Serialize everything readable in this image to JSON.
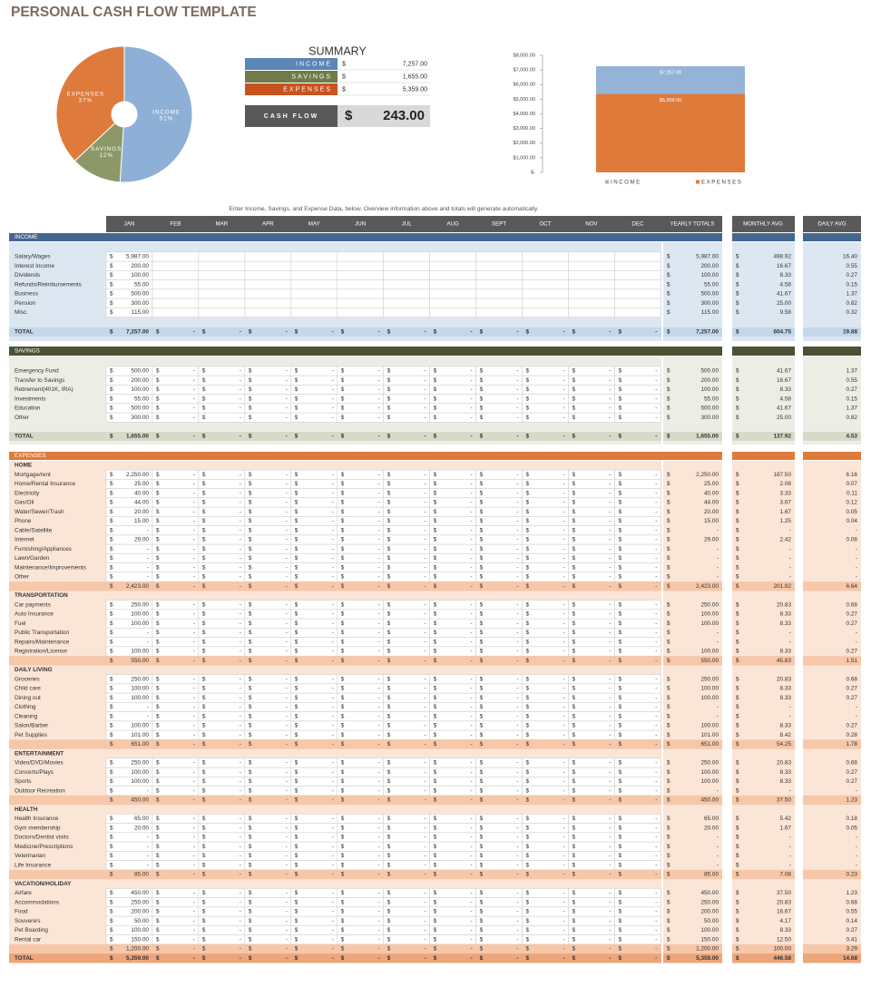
{
  "header": {
    "title": "PERSONAL CASH FLOW TEMPLATE"
  },
  "chart_data": [
    {
      "type": "pie",
      "categories": [
        "INCOME",
        "SAVINGS",
        "EXPENSES"
      ],
      "values": [
        51,
        12,
        37
      ],
      "value_labels": [
        "51%",
        "12%",
        "37%"
      ],
      "colors": [
        "#8fb0d6",
        "#8c9868",
        "#de7a3c"
      ]
    },
    {
      "type": "bar",
      "categories": [
        null
      ],
      "series": [
        {
          "name": "INCOME",
          "color": "#95b3d7",
          "values": [
            7257
          ],
          "value_labels": [
            "$7,257.00"
          ]
        },
        {
          "name": "EXPENSES",
          "color": "#df7a3a",
          "values": [
            5359
          ],
          "value_labels": [
            "$5,359.00"
          ]
        }
      ],
      "ylim": [
        0,
        8000
      ],
      "yticks": [
        {
          "value": 0,
          "label": "$-"
        },
        {
          "value": 1000,
          "label": "$1,000.00"
        },
        {
          "value": 2000,
          "label": "$2,000.00"
        },
        {
          "value": 3000,
          "label": "$3,000.00"
        },
        {
          "value": 4000,
          "label": "$4,000.00"
        },
        {
          "value": 5000,
          "label": "$5,000.00"
        },
        {
          "value": 6000,
          "label": "$6,000.00"
        },
        {
          "value": 7000,
          "label": "$7,000.00"
        },
        {
          "value": 8000,
          "label": "$8,000.00"
        }
      ],
      "legend": "bottom"
    }
  ],
  "summary": {
    "title": "SUMMARY",
    "currency": "$",
    "rows": [
      {
        "label": "INCOME",
        "value": "7,257.00"
      },
      {
        "label": "SAVINGS",
        "value": "1,655.00"
      },
      {
        "label": "EXPENSES",
        "value": "5,359.00"
      }
    ],
    "cash_flow": {
      "label": "CASH FLOW",
      "value": "243.00"
    }
  },
  "instructions": "Enter Income, Savings, and Expense Data, below.  Overview information above and totals will generate automatically.",
  "table": {
    "columns": [
      "JAN",
      "FEB",
      "MAR",
      "APR",
      "MAY",
      "JUN",
      "JUL",
      "AUG",
      "SEPT",
      "OCT",
      "NOV",
      "DEC",
      "YEARLY TOTALS",
      "MONTHLY AVG",
      "DAILY AVG"
    ],
    "currency": "$",
    "dash": "-",
    "sections": [
      {
        "title": "INCOME",
        "rows": [
          [
            "Salary/Wages",
            "5,987.00",
            "5,987.00",
            "498.92",
            "16.40"
          ],
          [
            "Interest Income",
            "200.00",
            "200.00",
            "16.67",
            "0.55"
          ],
          [
            "Dividends",
            "100.00",
            "100.00",
            "8.33",
            "0.27"
          ],
          [
            "Refunds/Reimbursements",
            "55.00",
            "55.00",
            "4.58",
            "0.15"
          ],
          [
            "Business",
            "500.00",
            "500.00",
            "41.67",
            "1.37"
          ],
          [
            "Pension",
            "300.00",
            "300.00",
            "25.00",
            "0.82"
          ],
          [
            "Misc.",
            "115.00",
            "115.00",
            "9.58",
            "0.32"
          ]
        ],
        "total": [
          "TOTAL",
          "7,257.00",
          "7,257.00",
          "604.75",
          "19.88"
        ]
      },
      {
        "title": "SAVINGS",
        "rows": [
          [
            "Emergency Fund",
            "500.00",
            "500.00",
            "41.67",
            "1.37"
          ],
          [
            "Transfer to Savings",
            "200.00",
            "200.00",
            "16.67",
            "0.55"
          ],
          [
            "Retirement(401K, IRA)",
            "100.00",
            "100.00",
            "8.33",
            "0.27"
          ],
          [
            "Investments",
            "55.00",
            "55.00",
            "4.58",
            "0.15"
          ],
          [
            "Education",
            "500.00",
            "500.00",
            "41.67",
            "1.37"
          ],
          [
            "Other",
            "300.00",
            "300.00",
            "25.00",
            "0.82"
          ]
        ],
        "total": [
          "TOTAL",
          "1,655.00",
          "1,655.00",
          "137.92",
          "4.53"
        ]
      },
      {
        "title": "EXPENSES",
        "groups": [
          {
            "title": "HOME",
            "rows": [
              [
                "Mortgage/rent",
                "2,250.00",
                "2,250.00",
                "187.50",
                "6.16"
              ],
              [
                "Home/Rental Insurance",
                "25.00",
                "25.00",
                "2.08",
                "0.07"
              ],
              [
                "Electricity",
                "40.00",
                "40.00",
                "3.33",
                "0.11"
              ],
              [
                "Gas/Oil",
                "44.00",
                "44.00",
                "3.67",
                "0.12"
              ],
              [
                "Water/Sewer/Trash",
                "20.00",
                "20.00",
                "1.67",
                "0.05"
              ],
              [
                "Phone",
                "15.00",
                "15.00",
                "1.25",
                "0.04"
              ],
              [
                "Cable/Satellite",
                "-",
                "-",
                "-",
                "-"
              ],
              [
                "Internet",
                "29.00",
                "29.00",
                "2.42",
                "0.08"
              ],
              [
                "Furnishing/Appliances",
                "-",
                "-",
                "-",
                "-"
              ],
              [
                "Lawn/Garden",
                "-",
                "-",
                "-",
                "-"
              ],
              [
                "Maintenance/Improvements",
                "-",
                "-",
                "-",
                "-"
              ],
              [
                "Other",
                "-",
                "-",
                "-",
                "-"
              ]
            ],
            "subtotal": [
              "2,423.00",
              "2,423.00",
              "201.92",
              "6.64"
            ]
          },
          {
            "title": "TRANSPORTATION",
            "rows": [
              [
                "Car payments",
                "250.00",
                "250.00",
                "20.83",
                "0.68"
              ],
              [
                "Auto Insurance",
                "100.00",
                "100.00",
                "8.33",
                "0.27"
              ],
              [
                "Fuel",
                "100.00",
                "100.00",
                "8.33",
                "0.27"
              ],
              [
                "Public Transportation",
                "-",
                "-",
                "-",
                "-"
              ],
              [
                "Repairs/Maintenance",
                "-",
                "-",
                "-",
                "-"
              ],
              [
                "Registration/License",
                "100.00",
                "100.00",
                "8.33",
                "0.27"
              ]
            ],
            "subtotal": [
              "550.00",
              "550.00",
              "45.83",
              "1.51"
            ]
          },
          {
            "title": "DAILY LIVING",
            "rows": [
              [
                "Groceries",
                "250.00",
                "250.00",
                "20.83",
                "0.68"
              ],
              [
                "Child care",
                "100.00",
                "100.00",
                "8.33",
                "0.27"
              ],
              [
                "Dining out",
                "100.00",
                "100.00",
                "8.33",
                "0.27"
              ],
              [
                "Clothing",
                "-",
                "-",
                "-",
                "-"
              ],
              [
                "Cleaning",
                "-",
                "-",
                "-",
                "-"
              ],
              [
                "Salon/Barber",
                "100.00",
                "100.00",
                "8.33",
                "0.27"
              ],
              [
                "Pet Supplies",
                "101.00",
                "101.00",
                "8.42",
                "0.28"
              ]
            ],
            "subtotal": [
              "651.00",
              "651.00",
              "54.25",
              "1.78"
            ]
          },
          {
            "title": "ENTERTAINMENT",
            "rows": [
              [
                "Video/DVD/Movies",
                "250.00",
                "250.00",
                "20.83",
                "0.68"
              ],
              [
                "Concerts/Plays",
                "100.00",
                "100.00",
                "8.33",
                "0.27"
              ],
              [
                "Sports",
                "100.00",
                "100.00",
                "8.33",
                "0.27"
              ],
              [
                "Outdoor Recreation",
                "-",
                "-",
                "-",
                "-"
              ]
            ],
            "subtotal": [
              "450.00",
              "450.00",
              "37.50",
              "1.23"
            ]
          },
          {
            "title": "HEALTH",
            "rows": [
              [
                "Health Insurance",
                "65.00",
                "65.00",
                "5.42",
                "0.18"
              ],
              [
                "Gym membership",
                "20.00",
                "20.00",
                "1.67",
                "0.05"
              ],
              [
                "Doctors/Dentist visits",
                "-",
                "-",
                "-",
                "-"
              ],
              [
                "Medicine/Prescriptions",
                "-",
                "-",
                "-",
                "-"
              ],
              [
                "Veterinarian",
                "-",
                "-",
                "-",
                "-"
              ],
              [
                "Life Insurance",
                "-",
                "-",
                "-",
                "-"
              ]
            ],
            "subtotal": [
              "85.00",
              "85.00",
              "7.08",
              "0.23"
            ]
          },
          {
            "title": "VACATION/HOLIDAY",
            "rows": [
              [
                "Airfare",
                "450.00",
                "450.00",
                "37.50",
                "1.23"
              ],
              [
                "Accommodations",
                "250.00",
                "250.00",
                "20.83",
                "0.68"
              ],
              [
                "Food",
                "200.00",
                "200.00",
                "16.67",
                "0.55"
              ],
              [
                "Souvenirs",
                "50.00",
                "50.00",
                "4.17",
                "0.14"
              ],
              [
                "Pet Boarding",
                "100.00",
                "100.00",
                "8.33",
                "0.27"
              ],
              [
                "Rental car",
                "150.00",
                "150.00",
                "12.50",
                "0.41"
              ]
            ],
            "subtotal": [
              "1,200.00",
              "1,200.00",
              "100.00",
              "3.29"
            ]
          }
        ],
        "total": [
          "TOTAL",
          "5,359.00",
          "5,359.00",
          "446.58",
          "14.68"
        ]
      }
    ]
  }
}
